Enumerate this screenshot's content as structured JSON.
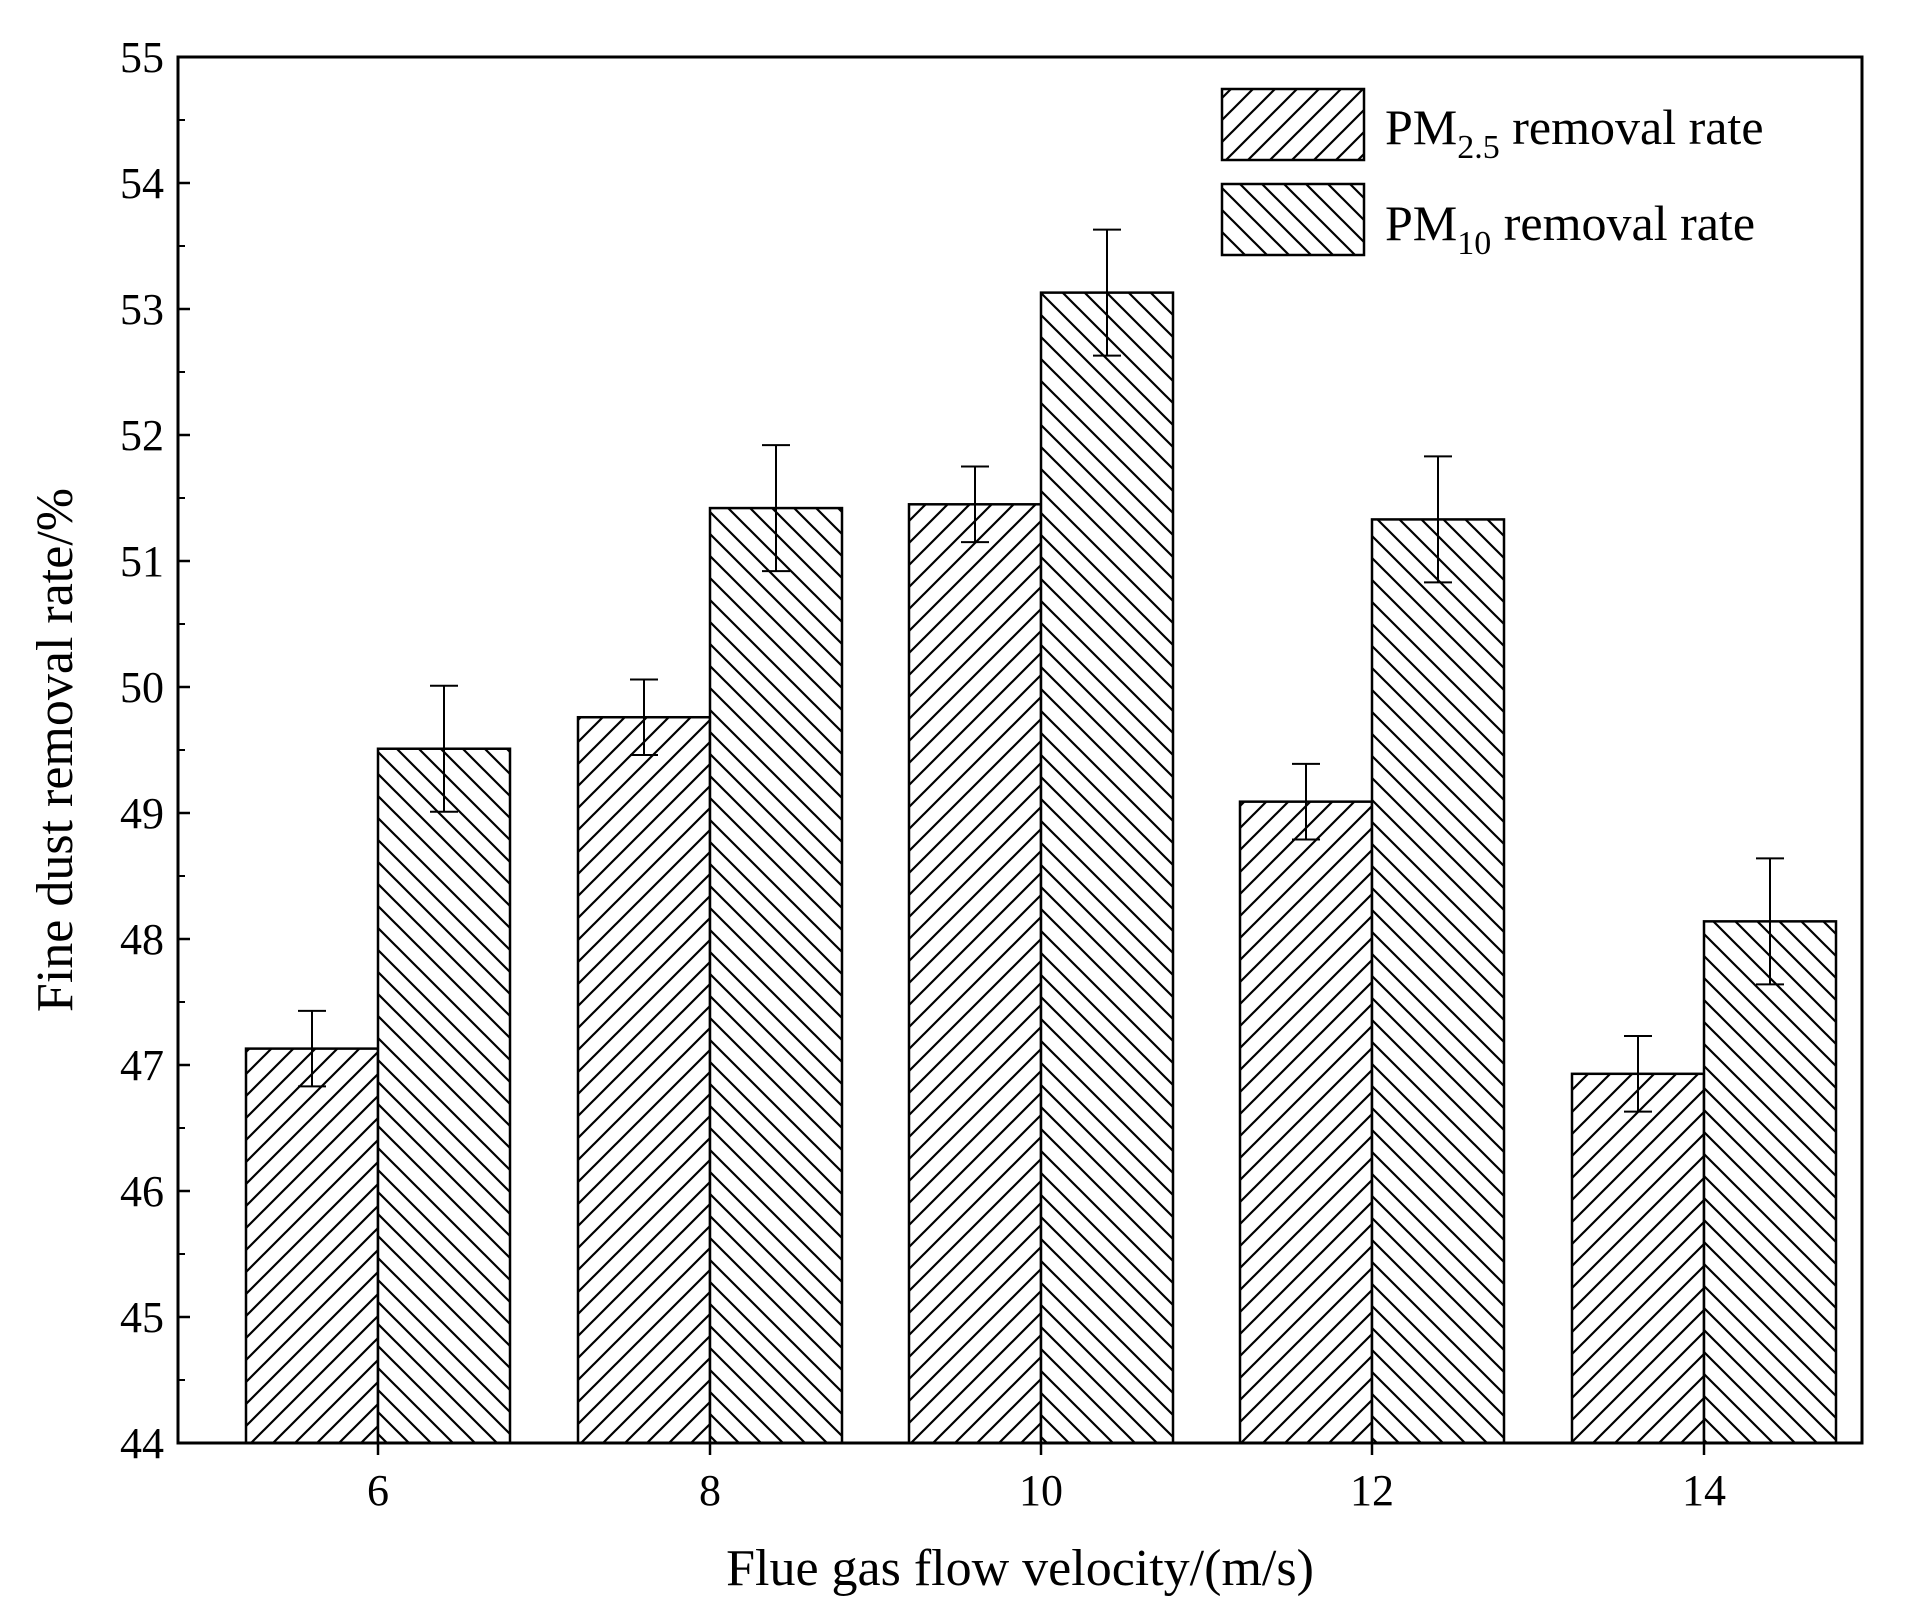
{
  "chart_data": {
    "type": "bar",
    "title": "",
    "xlabel": "Flue gas flow velocity/(m/s)",
    "ylabel": "Fine dust removal rate/%",
    "categories": [
      "6",
      "8",
      "10",
      "12",
      "14"
    ],
    "ylim": [
      44,
      55
    ],
    "yticks": [
      "44",
      "45",
      "46",
      "47",
      "48",
      "49",
      "50",
      "51",
      "52",
      "53",
      "54",
      "55"
    ],
    "legend_position": "top-right",
    "grid": false,
    "series": [
      {
        "name": "PM2.5 removal rate",
        "legend_main": "PM",
        "legend_sub": "2.5",
        "legend_rest": " removal rate",
        "pattern": "forward-hatch",
        "values": [
          47.13,
          49.76,
          51.45,
          49.09,
          46.93
        ],
        "errors": [
          0.3,
          0.3,
          0.3,
          0.3,
          0.3
        ]
      },
      {
        "name": "PM10 removal rate",
        "legend_main": "PM",
        "legend_sub": "10",
        "legend_rest": " removal rate",
        "pattern": "back-hatch",
        "values": [
          49.51,
          51.42,
          53.13,
          51.33,
          48.14
        ],
        "errors": [
          0.5,
          0.5,
          0.5,
          0.5,
          0.5
        ]
      }
    ]
  }
}
